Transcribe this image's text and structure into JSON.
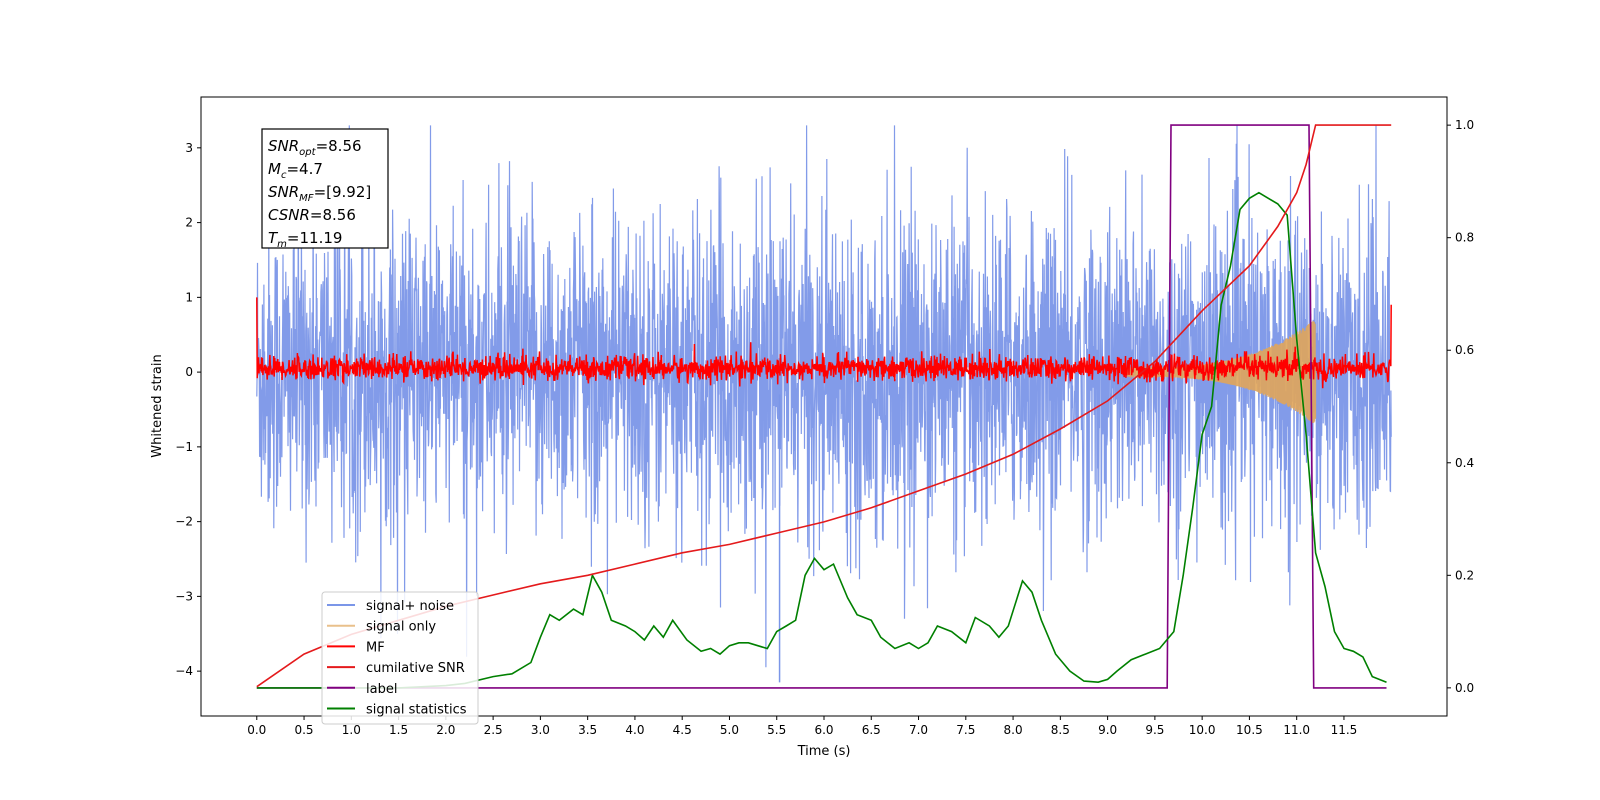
{
  "chart_data": {
    "type": "line",
    "xlabel": "Time (s)",
    "ylabel": "Whitened strain",
    "xlim": [
      -0.59,
      12.59
    ],
    "ylim": [
      -4.6,
      3.68
    ],
    "y2lim": [
      -0.05,
      1.05
    ],
    "xticks": [
      0.0,
      0.5,
      1.0,
      1.5,
      2.0,
      2.5,
      3.0,
      3.5,
      4.0,
      4.5,
      5.0,
      5.5,
      6.0,
      6.5,
      7.0,
      7.5,
      8.0,
      8.5,
      9.0,
      9.5,
      10.0,
      10.5,
      11.0,
      11.5
    ],
    "xtick_labels": [
      "0.0",
      "0.5",
      "1.0",
      "1.5",
      "2.0",
      "2.5",
      "3.0",
      "3.5",
      "4.0",
      "4.5",
      "5.0",
      "5.5",
      "6.0",
      "6.5",
      "7.0",
      "7.5",
      "8.0",
      "8.5",
      "9.0",
      "9.5",
      "10.0",
      "10.5",
      "11.0",
      "11.5"
    ],
    "yticks": [
      3,
      2,
      1,
      0,
      -1,
      -2,
      -3,
      -4
    ],
    "ytick_labels": [
      "3",
      "2",
      "1",
      "0",
      "−1",
      "−2",
      "−3",
      "−4"
    ],
    "y2ticks": [
      1.0,
      0.8,
      0.6,
      0.4,
      0.2,
      0.0
    ],
    "y2tick_labels": [
      "1.0",
      "0.8",
      "0.6",
      "0.4",
      "0.2",
      "0.0"
    ],
    "grid": false,
    "legend_position": "lower-left",
    "colors": {
      "signal_noise": "#7b96e8",
      "signal_only": "#e0a55a",
      "mf": "#ff0000",
      "cumulative_snr": "#e41a1c",
      "label": "#800080",
      "signal_statistics": "#008000"
    },
    "annotation": {
      "lines": [
        {
          "base": "SNR",
          "sub": "opt",
          "value": "=8.56"
        },
        {
          "base": "M",
          "sub": "c",
          "value": "=4.7"
        },
        {
          "base": "SNR",
          "sub": "MF",
          "value": "=[9.92]"
        },
        {
          "base": "CSNR",
          "sub": "",
          "value": "=8.56"
        },
        {
          "base": "T",
          "sub": "m",
          "value": "=11.19"
        }
      ]
    },
    "series": [
      {
        "name": "signal+ noise",
        "axis": "left",
        "kind": "noise",
        "x_range": [
          0.0,
          12.0
        ],
        "mean": 0.0,
        "band_min": -2.3,
        "band_max": 2.3,
        "spike_min": -4.15,
        "spike_max": 3.3
      },
      {
        "name": "signal only",
        "axis": "left",
        "kind": "chirp",
        "x_range": [
          9.2,
          11.2
        ],
        "peak_amplitude": 0.65
      },
      {
        "name": "MF",
        "axis": "left",
        "kind": "noise",
        "x_range": [
          0.0,
          12.0
        ],
        "mean": 0.05,
        "band_min": -0.12,
        "band_max": 0.22,
        "spike_min": -0.3,
        "spike_max": 0.4,
        "start_value": 1.0,
        "end_value": 0.9
      },
      {
        "name": "cumilative SNR",
        "axis": "right",
        "x": [
          0.0,
          0.5,
          1.0,
          1.5,
          2.0,
          2.5,
          3.0,
          3.5,
          4.0,
          4.5,
          5.0,
          5.5,
          6.0,
          6.5,
          7.0,
          7.5,
          8.0,
          8.5,
          9.0,
          9.5,
          10.0,
          10.5,
          10.8,
          11.0,
          11.1,
          11.2,
          12.0
        ],
        "values": [
          0.002,
          0.06,
          0.095,
          0.12,
          0.145,
          0.165,
          0.185,
          0.2,
          0.22,
          0.24,
          0.255,
          0.275,
          0.295,
          0.32,
          0.35,
          0.38,
          0.415,
          0.46,
          0.51,
          0.58,
          0.67,
          0.75,
          0.82,
          0.88,
          0.93,
          1.0,
          1.0
        ]
      },
      {
        "name": "label",
        "axis": "right",
        "x": [
          0.0,
          9.63,
          9.67,
          11.13,
          11.18,
          11.95
        ],
        "values": [
          0.0,
          0.0,
          1.0,
          1.0,
          0.0,
          0.0
        ]
      },
      {
        "name": "signal statistics",
        "axis": "right",
        "x": [
          0.0,
          0.5,
          1.0,
          1.5,
          2.0,
          2.2,
          2.5,
          2.7,
          2.9,
          3.0,
          3.1,
          3.2,
          3.35,
          3.45,
          3.55,
          3.65,
          3.75,
          3.9,
          4.0,
          4.1,
          4.2,
          4.3,
          4.4,
          4.55,
          4.7,
          4.8,
          4.9,
          5.0,
          5.1,
          5.2,
          5.3,
          5.4,
          5.5,
          5.6,
          5.7,
          5.8,
          5.9,
          6.0,
          6.1,
          6.25,
          6.35,
          6.5,
          6.6,
          6.75,
          6.9,
          7.0,
          7.1,
          7.2,
          7.35,
          7.5,
          7.6,
          7.75,
          7.85,
          7.95,
          8.1,
          8.2,
          8.3,
          8.45,
          8.6,
          8.75,
          8.9,
          9.0,
          9.1,
          9.25,
          9.4,
          9.55,
          9.7,
          9.8,
          9.9,
          10.0,
          10.1,
          10.2,
          10.3,
          10.4,
          10.5,
          10.6,
          10.7,
          10.8,
          10.9,
          11.0,
          11.1,
          11.2,
          11.3,
          11.4,
          11.5,
          11.6,
          11.7,
          11.8,
          11.95
        ],
        "values": [
          0.0,
          0.0,
          0.0,
          0.0,
          0.004,
          0.008,
          0.02,
          0.025,
          0.045,
          0.09,
          0.13,
          0.12,
          0.14,
          0.13,
          0.2,
          0.17,
          0.12,
          0.11,
          0.1,
          0.085,
          0.11,
          0.09,
          0.12,
          0.085,
          0.065,
          0.07,
          0.06,
          0.075,
          0.08,
          0.08,
          0.075,
          0.07,
          0.1,
          0.11,
          0.12,
          0.2,
          0.23,
          0.21,
          0.22,
          0.16,
          0.13,
          0.12,
          0.09,
          0.07,
          0.08,
          0.07,
          0.08,
          0.11,
          0.1,
          0.08,
          0.125,
          0.11,
          0.09,
          0.11,
          0.19,
          0.17,
          0.12,
          0.06,
          0.03,
          0.012,
          0.01,
          0.015,
          0.03,
          0.05,
          0.06,
          0.07,
          0.1,
          0.2,
          0.32,
          0.45,
          0.5,
          0.68,
          0.75,
          0.85,
          0.87,
          0.88,
          0.87,
          0.86,
          0.84,
          0.62,
          0.45,
          0.24,
          0.18,
          0.1,
          0.07,
          0.065,
          0.055,
          0.02,
          0.01
        ]
      }
    ]
  }
}
